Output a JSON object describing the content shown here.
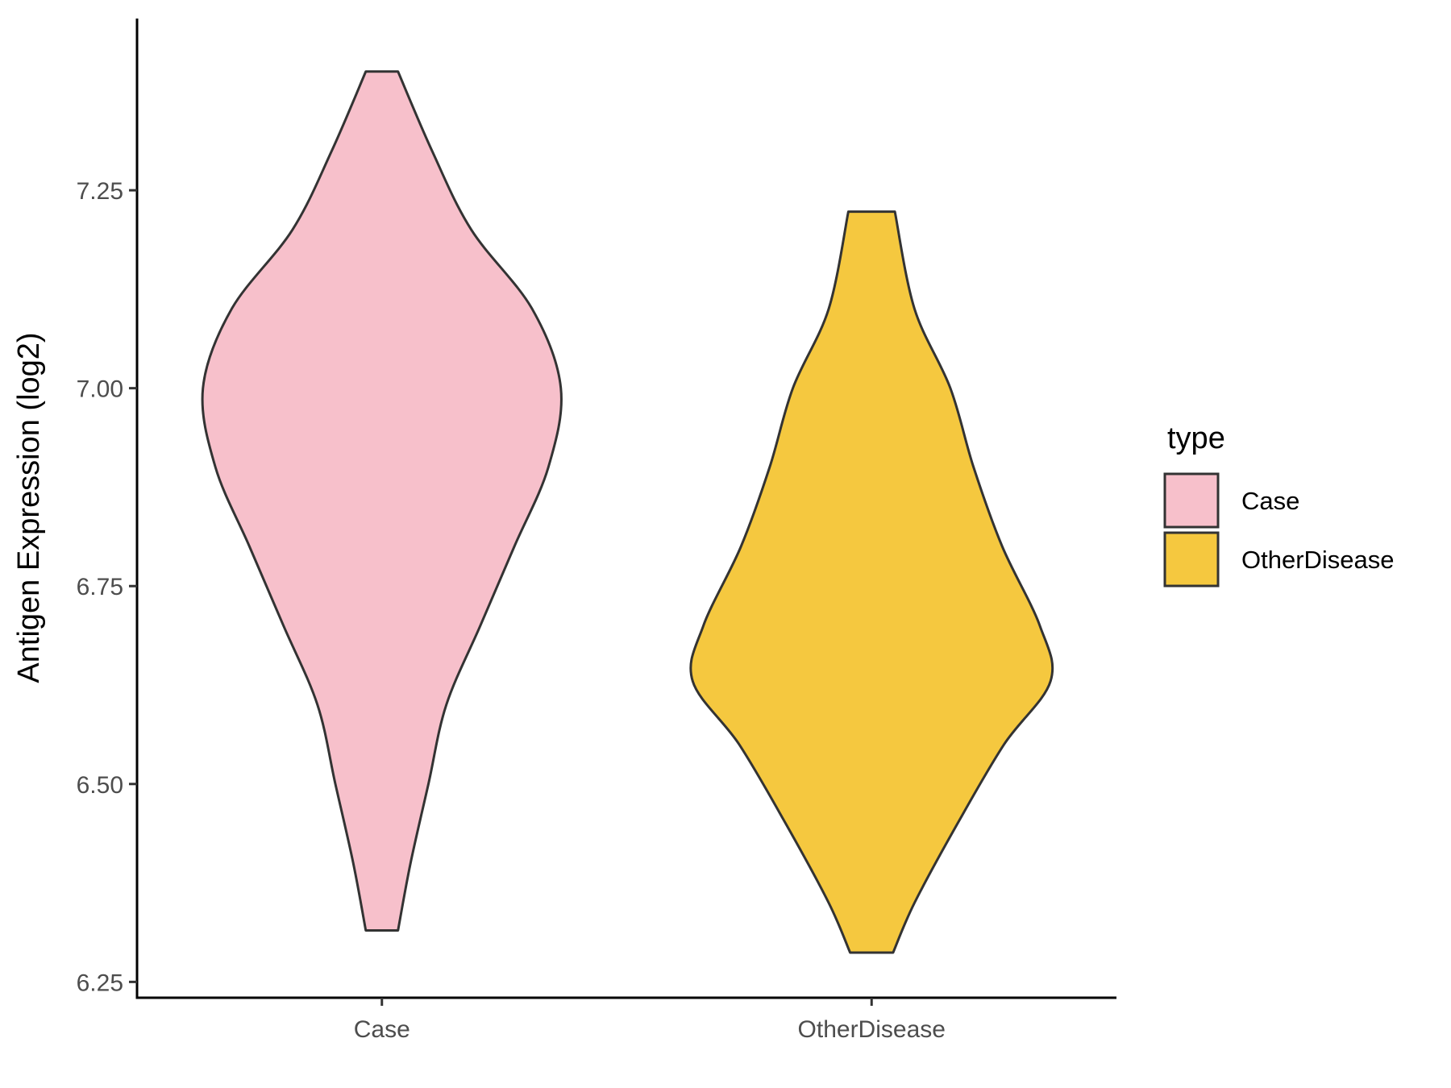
{
  "chart_data": {
    "type": "violin",
    "ylabel": "Antigen Expression (log2)",
    "xlabel": "",
    "ylim": [
      6.23,
      7.47
    ],
    "y_ticks": [
      6.25,
      6.5,
      6.75,
      7.0,
      7.25
    ],
    "y_tick_labels": [
      "6.25",
      "6.50",
      "6.75",
      "7.00",
      "7.25"
    ],
    "categories": [
      "Case",
      "OtherDisease"
    ],
    "legend": {
      "title": "type",
      "position": "right",
      "entries": [
        "Case",
        "OtherDisease"
      ]
    },
    "grid": false,
    "series": [
      {
        "name": "Case",
        "color": "#F7C0CB",
        "min": 6.315,
        "max": 7.4,
        "density_profile": [
          [
            6.315,
            0.09
          ],
          [
            6.4,
            0.16
          ],
          [
            6.5,
            0.26
          ],
          [
            6.6,
            0.36
          ],
          [
            6.7,
            0.55
          ],
          [
            6.8,
            0.74
          ],
          [
            6.9,
            0.93
          ],
          [
            7.0,
            1.0
          ],
          [
            7.1,
            0.84
          ],
          [
            7.2,
            0.5
          ],
          [
            7.3,
            0.28
          ],
          [
            7.4,
            0.09
          ]
        ]
      },
      {
        "name": "OtherDisease",
        "color": "#F5C83F",
        "min": 6.287,
        "max": 7.223,
        "density_profile": [
          [
            6.287,
            0.12
          ],
          [
            6.35,
            0.24
          ],
          [
            6.45,
            0.48
          ],
          [
            6.55,
            0.74
          ],
          [
            6.63,
            1.0
          ],
          [
            6.7,
            0.94
          ],
          [
            6.8,
            0.73
          ],
          [
            6.9,
            0.57
          ],
          [
            7.0,
            0.44
          ],
          [
            7.1,
            0.24
          ],
          [
            7.223,
            0.13
          ]
        ]
      }
    ],
    "outline_color": "#333333",
    "axis_color": "#000000"
  }
}
